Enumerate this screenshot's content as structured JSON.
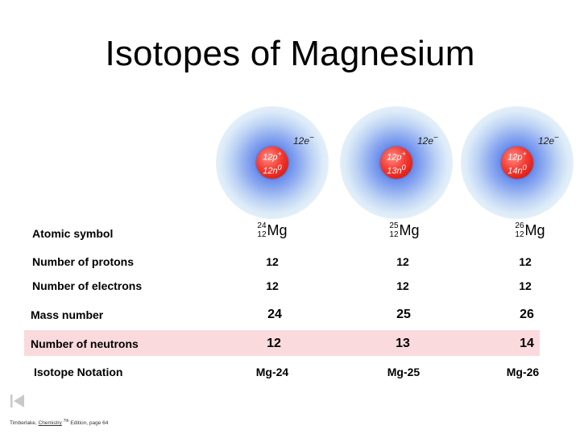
{
  "slide": {
    "title": "Isotopes of Magnesium"
  },
  "atoms": [
    {
      "protons": "12p",
      "neutrons": "12n",
      "electrons": "12e"
    },
    {
      "protons": "12p",
      "neutrons": "13n",
      "electrons": "12e"
    },
    {
      "protons": "12p",
      "neutrons": "14n",
      "electrons": "12e"
    }
  ],
  "table": {
    "labels": {
      "atomic_symbol": "Atomic symbol",
      "protons": "Number of protons",
      "electrons": "Number of electrons",
      "mass_number": "Mass number",
      "neutrons": "Number of neutrons",
      "notation": "Isotope Notation"
    },
    "columns": [
      {
        "mass": "24",
        "atomic": "12",
        "element": "Mg",
        "protons": "12",
        "electrons": "12",
        "mass_number": "24",
        "neutrons": "12",
        "notation": "Mg-24"
      },
      {
        "mass": "25",
        "atomic": "12",
        "element": "Mg",
        "protons": "12",
        "electrons": "12",
        "mass_number": "25",
        "neutrons": "13",
        "notation": "Mg-25"
      },
      {
        "mass": "26",
        "atomic": "12",
        "element": "Mg",
        "protons": "12",
        "electrons": "12",
        "mass_number": "26",
        "neutrons": "14",
        "notation": "Mg-26"
      }
    ]
  },
  "footer": {
    "author": "Timberlake, ",
    "book": "Chemistry",
    "edition_sup": "7th",
    "rest": " Edition, page 64"
  },
  "colors": {
    "highlight": "#fadadd",
    "nucleus": "#e2231a",
    "electron_cloud": "#5d86ec"
  }
}
